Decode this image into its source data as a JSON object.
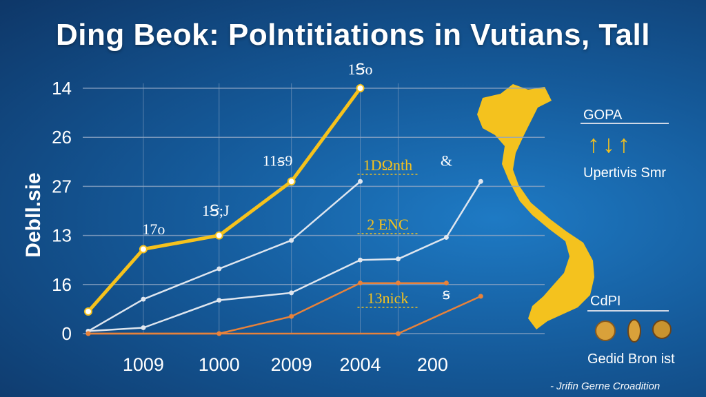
{
  "title": "Ding Beok: Polntitiations in Vutians, Tall",
  "side_panel": {
    "top_title": "GOPA",
    "arrow_glyphs": "↑↓↑",
    "top_subtitle": "Upertivis Smr",
    "bottom_title": "CdPI",
    "bottom_subtitle": "Gedid Bron ist"
  },
  "credit": "- Jrifin Gerne Croadition",
  "colors": {
    "gold": "#f6c21c",
    "white_line": "#dfe6ef",
    "orange": "#e8823a",
    "grid": "#8fa6c4",
    "map": "#f4c21e"
  },
  "chart_data": {
    "type": "line",
    "title": "Ding Beok: Polntitiations in Vutians, Tall",
    "ylabel": "Debll.sie",
    "xlabel": "",
    "x_tick_labels": [
      "1009",
      "1000",
      "2009",
      "2004",
      "200"
    ],
    "y_tick_labels": [
      "14",
      "26",
      "27",
      "13",
      "16",
      "0"
    ],
    "y_tick_values": [
      5,
      4,
      3,
      2,
      1,
      0
    ],
    "ylim": [
      0,
      5
    ],
    "xlim": [
      0,
      5.7
    ],
    "grid": true,
    "series": [
      {
        "color": "gold",
        "points": [
          [
            0,
            0.45
          ],
          [
            0.8,
            1.72
          ],
          [
            1.9,
            2.0
          ],
          [
            2.95,
            3.1
          ],
          [
            3.95,
            5.0
          ]
        ]
      },
      {
        "color": "white_line",
        "points": [
          [
            0,
            0.05
          ],
          [
            0.8,
            0.7
          ],
          [
            1.9,
            1.32
          ],
          [
            2.95,
            1.9
          ],
          [
            3.95,
            3.1
          ]
        ]
      },
      {
        "color": "white_line",
        "points": [
          [
            0,
            0.05
          ],
          [
            0.8,
            0.12
          ],
          [
            1.9,
            0.68
          ],
          [
            2.95,
            0.83
          ],
          [
            3.95,
            1.5
          ],
          [
            4.5,
            1.52
          ],
          [
            5.2,
            1.96
          ],
          [
            5.7,
            3.1
          ]
        ]
      },
      {
        "color": "orange",
        "points": [
          [
            0,
            0.0
          ],
          [
            1.9,
            0.0
          ],
          [
            2.95,
            0.35
          ],
          [
            3.95,
            1.03
          ],
          [
            4.5,
            1.03
          ],
          [
            5.2,
            1.03
          ]
        ]
      },
      {
        "color": "orange",
        "points": [
          [
            0,
            0.0
          ],
          [
            4.5,
            0.0
          ],
          [
            5.7,
            0.76
          ]
        ]
      }
    ],
    "annotations": [
      {
        "text": "1Ꞩo",
        "x": 3.95,
        "y": 5.28,
        "color": "white"
      },
      {
        "text": "11ꞩ9",
        "x": 2.75,
        "y": 3.42,
        "color": "white"
      },
      {
        "text": "1Ꞩ;J",
        "x": 1.85,
        "y": 2.4,
        "color": "white"
      },
      {
        "text": "17o",
        "x": 0.95,
        "y": 2.02,
        "color": "white"
      },
      {
        "text": "1DΩnth",
        "x": 4.35,
        "y": 3.33,
        "color": "gold"
      },
      {
        "text": "2 ENC",
        "x": 4.35,
        "y": 2.12,
        "color": "gold"
      },
      {
        "text": "13nick",
        "x": 4.35,
        "y": 0.62,
        "color": "gold"
      },
      {
        "text": "&",
        "x": 5.2,
        "y": 3.42,
        "color": "white"
      },
      {
        "text": "ꞩ",
        "x": 5.2,
        "y": 0.7,
        "color": "white"
      }
    ]
  }
}
